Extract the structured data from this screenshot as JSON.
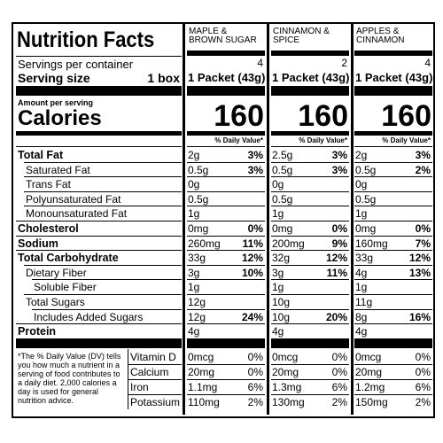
{
  "label": {
    "title": "Nutrition Facts",
    "servings_label": "Servings per container",
    "serving_size_label": "Serving size",
    "serving_size": "1 box",
    "amount_label": "Amount per serving",
    "calories_label": "Calories",
    "dv_header": "% Daily Value*",
    "footnote": "*The % Daily Value (DV) tells you how much a nutrient in a serving of food contributes to a daily diet. 2,000 calories a day is used for general nutrition advice."
  },
  "nutrients": [
    {
      "name": "Total Fat",
      "bold": true,
      "indent": 0
    },
    {
      "name": "Saturated Fat",
      "bold": false,
      "indent": 1
    },
    {
      "name": "Trans Fat",
      "bold": false,
      "indent": 1
    },
    {
      "name": "Polyunsaturated Fat",
      "bold": false,
      "indent": 1
    },
    {
      "name": "Monounsaturated Fat",
      "bold": false,
      "indent": 1
    },
    {
      "name": "Cholesterol",
      "bold": true,
      "indent": 0
    },
    {
      "name": "Sodium",
      "bold": true,
      "indent": 0
    },
    {
      "name": "Total Carbohydrate",
      "bold": true,
      "indent": 0
    },
    {
      "name": "Dietary Fiber",
      "bold": false,
      "indent": 1
    },
    {
      "name": "Soluble Fiber",
      "bold": false,
      "indent": 2
    },
    {
      "name": "Total Sugars",
      "bold": false,
      "indent": 1
    },
    {
      "name": "Includes Added Sugars",
      "bold": false,
      "indent": 2
    },
    {
      "name": "Protein",
      "bold": true,
      "indent": 0
    }
  ],
  "vitamins": [
    "Vitamin D",
    "Calcium",
    "Iron",
    "Potassium"
  ],
  "products": [
    {
      "name": "MAPLE & BROWN SUGAR",
      "servings": 4,
      "serving_size": "1 Packet (43g)",
      "calories": 160,
      "nutrients": [
        [
          "2g",
          "3%"
        ],
        [
          "0.5g",
          "3%"
        ],
        [
          "0g"
        ],
        [
          "0.5g"
        ],
        [
          "1g"
        ],
        [
          "0mg",
          "0%"
        ],
        [
          "260mg",
          "11%"
        ],
        [
          "33g",
          "12%"
        ],
        [
          "3g",
          "10%"
        ],
        [
          "1g"
        ],
        [
          "12g"
        ],
        [
          "12g",
          "24%"
        ],
        [
          "4g"
        ]
      ],
      "vitamins": [
        [
          "0mcg",
          "0%"
        ],
        [
          "20mg",
          "0%"
        ],
        [
          "1.1mg",
          "6%"
        ],
        [
          "110mg",
          "2%"
        ]
      ]
    },
    {
      "name": "CINNAMON & SPICE",
      "servings": 2,
      "serving_size": "1 Packet (43g)",
      "calories": 160,
      "nutrients": [
        [
          "2.5g",
          "3%"
        ],
        [
          "0.5g",
          "3%"
        ],
        [
          "0g"
        ],
        [
          "0.5g"
        ],
        [
          "1g"
        ],
        [
          "0mg",
          "0%"
        ],
        [
          "200mg",
          "9%"
        ],
        [
          "32g",
          "12%"
        ],
        [
          "3g",
          "11%"
        ],
        [
          "1g"
        ],
        [
          "10g"
        ],
        [
          "10g",
          "20%"
        ],
        [
          "4g"
        ]
      ],
      "vitamins": [
        [
          "0mcg",
          "0%"
        ],
        [
          "20mg",
          "0%"
        ],
        [
          "1.3mg",
          "6%"
        ],
        [
          "130mg",
          "2%"
        ]
      ]
    },
    {
      "name": "APPLES & CINNAMON",
      "servings": 4,
      "serving_size": "1 Packet (43g)",
      "calories": 160,
      "nutrients": [
        [
          "2g",
          "3%"
        ],
        [
          "0.5g",
          "2%"
        ],
        [
          "0g"
        ],
        [
          "0.5g"
        ],
        [
          "1g"
        ],
        [
          "0mg",
          "0%"
        ],
        [
          "160mg",
          "7%"
        ],
        [
          "33g",
          "12%"
        ],
        [
          "4g",
          "13%"
        ],
        [
          "1g"
        ],
        [
          "11g"
        ],
        [
          "8g",
          "16%"
        ],
        [
          "4g"
        ]
      ],
      "vitamins": [
        [
          "0mcg",
          "0%"
        ],
        [
          "20mg",
          "0%"
        ],
        [
          "1.2mg",
          "6%"
        ],
        [
          "150mg",
          "2%"
        ]
      ]
    }
  ]
}
